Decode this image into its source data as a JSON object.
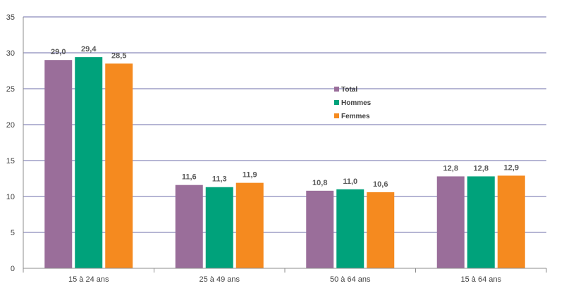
{
  "chart_data": {
    "type": "bar",
    "categories": [
      "15 à 24 ans",
      "25 à 49 ans",
      "50 à 64 ans",
      "15 à 64 ans"
    ],
    "series": [
      {
        "name": "Total",
        "color": "#9A6E9A",
        "values": [
          29.0,
          11.6,
          10.8,
          12.8
        ],
        "labels": [
          "29,0",
          "11,6",
          "10,8",
          "12,8"
        ]
      },
      {
        "name": "Hommes",
        "color": "#00A27B",
        "values": [
          29.4,
          11.3,
          11.0,
          12.8
        ],
        "labels": [
          "29,4",
          "11,3",
          "11,0",
          "12,8"
        ]
      },
      {
        "name": "Femmes",
        "color": "#F58A1F",
        "values": [
          28.5,
          11.9,
          10.6,
          12.9
        ],
        "labels": [
          "28,5",
          "11,9",
          "10,6",
          "12,9"
        ]
      }
    ],
    "ylim": [
      0,
      35
    ],
    "yticks": [
      "0",
      "5",
      "10",
      "15",
      "20",
      "25",
      "30",
      "35"
    ],
    "grid": true,
    "gridline_color": "#6E6EA8",
    "legend_position": "center"
  }
}
